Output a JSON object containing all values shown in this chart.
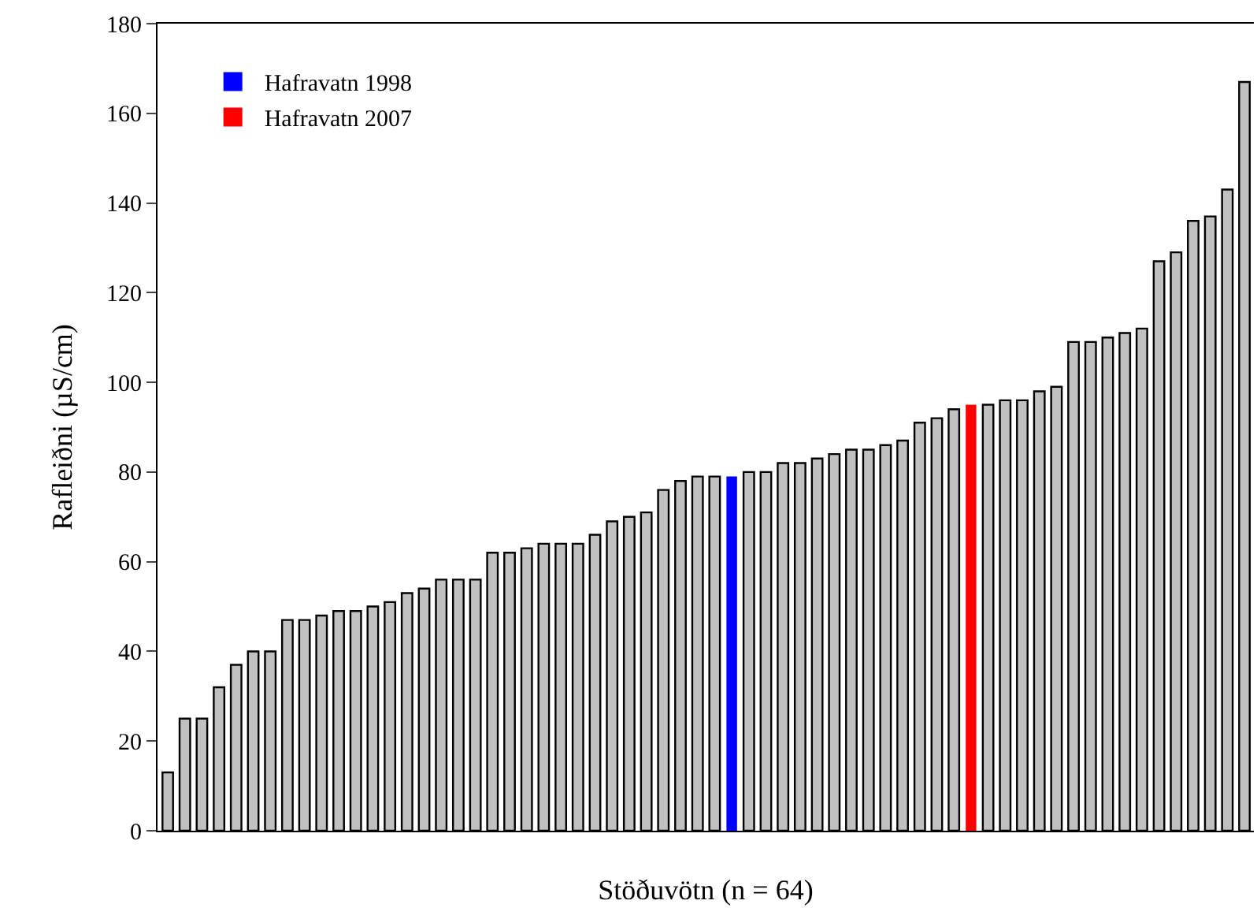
{
  "chart_data": {
    "type": "bar",
    "xlabel": "Stöðuvötn (n = 64)",
    "ylabel": "Rafleiðni (µS/cm)",
    "categories": [
      null,
      null,
      null,
      null,
      null,
      null,
      null,
      null,
      null,
      null,
      null,
      null,
      null,
      null,
      null,
      null,
      null,
      null,
      null,
      null,
      null,
      null,
      null,
      null,
      null,
      null,
      null,
      null,
      null,
      null,
      null,
      null,
      null,
      null,
      null,
      null,
      null,
      null,
      null,
      null,
      null,
      null,
      null,
      null,
      null,
      null,
      null,
      null,
      null,
      null,
      null,
      null,
      null,
      null,
      null,
      null,
      null,
      null,
      null,
      null,
      null,
      null,
      null,
      null
    ],
    "series": [
      {
        "color": "#c0c0c0",
        "values": [
          13,
          25,
          25,
          32,
          37,
          40,
          40,
          47,
          47,
          48,
          49,
          49,
          50,
          51,
          53,
          54,
          56,
          56,
          56,
          62,
          62,
          63,
          64,
          64,
          64,
          66,
          69,
          70,
          71,
          76,
          78,
          79,
          79,
          null,
          80,
          80,
          82,
          82,
          83,
          84,
          85,
          85,
          86,
          87,
          91,
          92,
          94,
          null,
          95,
          96,
          96,
          98,
          99,
          109,
          109,
          110,
          111,
          112,
          127,
          129,
          136,
          137,
          143,
          167
        ]
      },
      {
        "name": "Hafravatn 1998",
        "color": "#0000ff",
        "values": [
          null,
          null,
          null,
          null,
          null,
          null,
          null,
          null,
          null,
          null,
          null,
          null,
          null,
          null,
          null,
          null,
          null,
          null,
          null,
          null,
          null,
          null,
          null,
          null,
          null,
          null,
          null,
          null,
          null,
          null,
          null,
          null,
          null,
          79,
          null,
          null,
          null,
          null,
          null,
          null,
          null,
          null,
          null,
          null,
          null,
          null,
          null,
          null,
          null,
          null,
          null,
          null,
          null,
          null,
          null,
          null,
          null,
          null,
          null,
          null,
          null,
          null,
          null,
          null
        ]
      },
      {
        "name": "Hafravatn 2007",
        "color": "#ff0000",
        "values": [
          null,
          null,
          null,
          null,
          null,
          null,
          null,
          null,
          null,
          null,
          null,
          null,
          null,
          null,
          null,
          null,
          null,
          null,
          null,
          null,
          null,
          null,
          null,
          null,
          null,
          null,
          null,
          null,
          null,
          null,
          null,
          null,
          null,
          null,
          null,
          null,
          null,
          null,
          null,
          null,
          null,
          null,
          null,
          null,
          null,
          null,
          null,
          95,
          null,
          null,
          null,
          null,
          null,
          null,
          null,
          null,
          null,
          null,
          null,
          null,
          null,
          null,
          null,
          null
        ]
      }
    ],
    "ylim": [
      0,
      180
    ],
    "yticks": [
      0,
      20,
      40,
      60,
      80,
      100,
      120,
      140,
      160,
      180
    ],
    "legend": "top left"
  }
}
